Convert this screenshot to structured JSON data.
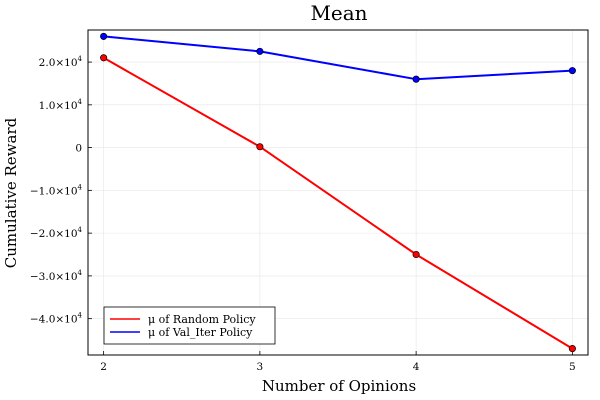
{
  "chart_data": {
    "type": "line",
    "title": "Mean",
    "xlabel": "Number of Opinions",
    "ylabel": "Cumulative Reward",
    "x": [
      2,
      3,
      4,
      5
    ],
    "xlim": [
      1.9,
      5.1
    ],
    "ylim": [
      -48500,
      27500
    ],
    "xticks": [
      {
        "value": 2,
        "label": "2"
      },
      {
        "value": 3,
        "label": "3"
      },
      {
        "value": 4,
        "label": "4"
      },
      {
        "value": 5,
        "label": "5"
      }
    ],
    "yticks": [
      {
        "value": 20000,
        "mant": "2.0×10",
        "exp": "4"
      },
      {
        "value": 10000,
        "mant": "1.0×10",
        "exp": "4"
      },
      {
        "value": 0,
        "mant": "0",
        "exp": ""
      },
      {
        "value": -10000,
        "mant": "−1.0×10",
        "exp": "4"
      },
      {
        "value": -20000,
        "mant": "−2.0×10",
        "exp": "4"
      },
      {
        "value": -30000,
        "mant": "−3.0×10",
        "exp": "4"
      },
      {
        "value": -40000,
        "mant": "−4.0×10",
        "exp": "4"
      }
    ],
    "grid": true,
    "legend_position": "bottom-left",
    "series": [
      {
        "name": "μ of Random Policy",
        "color": "#ff0000",
        "values": [
          21000,
          200,
          -25000,
          -47000
        ]
      },
      {
        "name": "μ of Val_Iter Policy",
        "color": "#0000ff",
        "values": [
          26000,
          22500,
          16000,
          18000
        ]
      }
    ]
  }
}
